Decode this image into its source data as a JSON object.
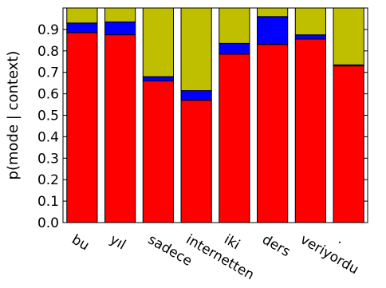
{
  "chart_data": {
    "type": "bar",
    "stacked": true,
    "title": "",
    "xlabel": "",
    "ylabel": "p(mode | context)",
    "ylim": [
      0.0,
      1.0
    ],
    "yticks": [
      "0.0",
      "0.1",
      "0.2",
      "0.3",
      "0.4",
      "0.5",
      "0.6",
      "0.7",
      "0.8",
      "0.9"
    ],
    "grid": false,
    "categories": [
      "bu",
      "yıl",
      "sadece",
      "internetten",
      "iki",
      "ders",
      "veriyordu",
      "."
    ],
    "series": [
      {
        "color": "#ff0000",
        "values": [
          0.885,
          0.875,
          0.66,
          0.57,
          0.785,
          0.83,
          0.855,
          0.73
        ]
      },
      {
        "color": "#0000ff",
        "values": [
          0.045,
          0.06,
          0.02,
          0.045,
          0.05,
          0.13,
          0.02,
          0.005
        ]
      },
      {
        "color": "#bfbf00",
        "values": [
          0.07,
          0.065,
          0.32,
          0.385,
          0.165,
          0.04,
          0.125,
          0.265
        ]
      }
    ]
  }
}
